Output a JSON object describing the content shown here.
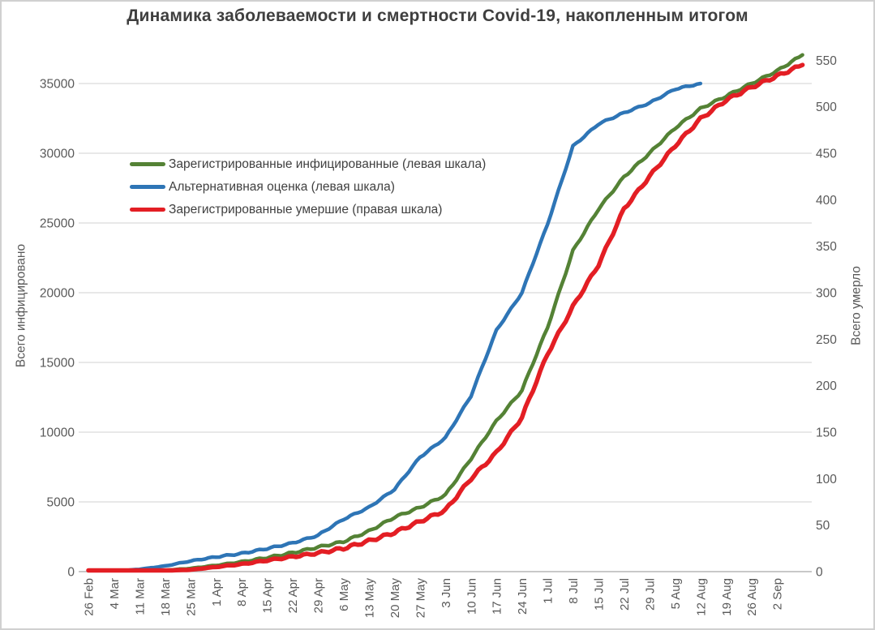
{
  "title": "Динамика заболеваемости и смертности Covid-19, накопленным итогом",
  "y_left_axis": {
    "title": "Всего инфицировано"
  },
  "y_right_axis": {
    "title": "Всего умерло"
  },
  "colors": {
    "registered_infected": "#548235",
    "alternative_estimate": "#2e75b6",
    "registered_deaths": "#e31e24",
    "gridline": "#d9d9d9",
    "axis_line": "#a6a6a6",
    "tick_text": "#595959",
    "title_text": "#3f3f3f"
  },
  "chart_data": {
    "type": "line",
    "title": "Динамика заболеваемости и смертности Covid-19, накопленным итогом",
    "categories": [
      "26 Feb",
      "4 Mar",
      "11 Mar",
      "18 Mar",
      "25 Mar",
      "1 Apr",
      "8 Apr",
      "15 Apr",
      "22 Apr",
      "29 Apr",
      "6 May",
      "13 May",
      "20 May",
      "27 May",
      "3 Jun",
      "10 Jun",
      "17 Jun",
      "24 Jun",
      "1 Jul",
      "8 Jul",
      "15 Jul",
      "22 Jul",
      "29 Jul",
      "5 Aug",
      "12 Aug",
      "19 Aug",
      "26 Aug",
      "2 Sep",
      ""
    ],
    "y_left_label": "Всего инфицировано",
    "y_right_label": "Всего умерло",
    "y_left_ticks": [
      0,
      5000,
      10000,
      15000,
      20000,
      25000,
      30000,
      35000
    ],
    "y_left_range": [
      0,
      37500
    ],
    "y_right_ticks": [
      0,
      50,
      100,
      150,
      200,
      250,
      300,
      350,
      400,
      450,
      500,
      550
    ],
    "y_right_range": [
      0,
      562.5
    ],
    "grid": true,
    "legend_position": "upper-left-inside",
    "series": [
      {
        "name": "Зарегистрированные инфицированные (левая шкала)",
        "axis": "left",
        "color": "#548235",
        "values": [
          0,
          10,
          40,
          100,
          230,
          450,
          700,
          1000,
          1350,
          1750,
          2150,
          2900,
          3900,
          4600,
          5500,
          8100,
          10800,
          13000,
          17500,
          23000,
          26000,
          28300,
          30000,
          31800,
          33200,
          34100,
          35000,
          35900,
          37050
        ]
      },
      {
        "name": "Альтернативная оценка (левая шкала)",
        "axis": "left",
        "color": "#2e75b6",
        "values": [
          0,
          20,
          170,
          400,
          760,
          1050,
          1300,
          1650,
          2050,
          2600,
          3760,
          4600,
          5900,
          8200,
          9600,
          12600,
          17300,
          20000,
          24900,
          30500,
          32100,
          32900,
          33600,
          34600,
          35000,
          null,
          null,
          null,
          null
        ]
      },
      {
        "name": "Зарегистрированные умершие (правая шкала)",
        "axis": "right",
        "color": "#e31e24",
        "values": [
          0,
          0,
          0,
          1,
          2,
          5,
          8,
          12,
          16,
          20,
          25,
          33,
          42,
          54,
          66,
          100,
          128,
          166,
          234,
          285,
          330,
          390,
          425,
          458,
          487,
          507,
          521,
          533,
          545
        ]
      }
    ]
  }
}
